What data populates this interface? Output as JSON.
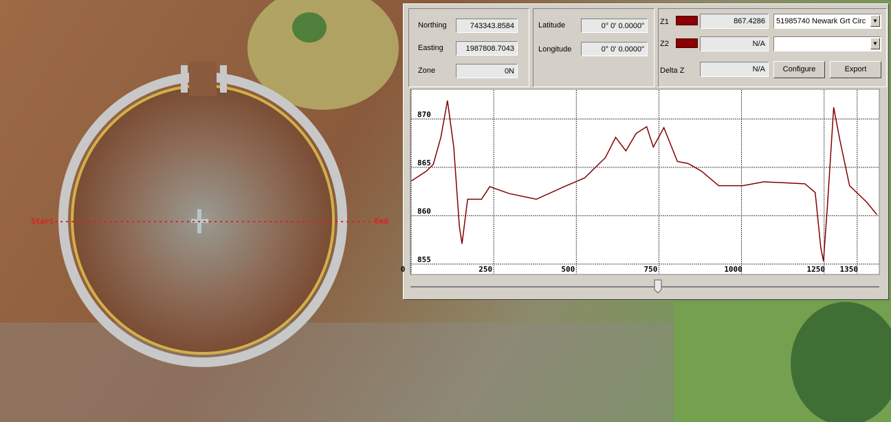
{
  "map": {
    "start_label": "Start",
    "end_label": "End"
  },
  "panel": {
    "northing": {
      "label": "Northing",
      "value": "743343.8584"
    },
    "easting": {
      "label": "Easting",
      "value": "1987808.7043"
    },
    "zone": {
      "label": "Zone",
      "value": "0N"
    },
    "latitude": {
      "label": "Latitude",
      "value": "0° 0' 0.0000\""
    },
    "longitude": {
      "label": "Longitude",
      "value": "0° 0' 0.0000\""
    },
    "z1": {
      "label": "Z1",
      "value": "867.4286",
      "layer": "51985740 Newark Grt Circ"
    },
    "z2": {
      "label": "Z2",
      "value": "N/A"
    },
    "delta_z": {
      "label": "Delta Z",
      "value": "N/A"
    },
    "buttons": [
      "Configure",
      "Export"
    ]
  },
  "chart_data": {
    "type": "line",
    "x": [
      1,
      46,
      67,
      90,
      110,
      129,
      146,
      154,
      171,
      213,
      238,
      296,
      379,
      463,
      525,
      588,
      619,
      650,
      681,
      713,
      733,
      765,
      806,
      838,
      879,
      931,
      1004,
      1067,
      1192,
      1223,
      1240,
      1248,
      1260,
      1279,
      1296,
      1327,
      1379,
      1410
    ],
    "series": [
      {
        "color": "#800000",
        "values": [
          863.6,
          864.6,
          865.3,
          868.1,
          871.9,
          867.1,
          858.9,
          857.1,
          861.7,
          861.7,
          863,
          862.3,
          861.7,
          863,
          863.9,
          866,
          868.1,
          866.7,
          868.5,
          869.2,
          867.1,
          869.1,
          865.6,
          865.4,
          864.6,
          863.1,
          863.1,
          863.5,
          863.3,
          862.4,
          856.7,
          855.3,
          861,
          871.2,
          868.1,
          863.1,
          861.4,
          860.1
        ]
      }
    ],
    "xlim": [
      0,
      1415
    ],
    "ylim": [
      854,
      873
    ],
    "xticks": [
      0,
      250,
      500,
      750,
      1000,
      1250,
      1350
    ],
    "yticks": [
      855,
      860,
      865,
      870
    ],
    "grid": true
  }
}
